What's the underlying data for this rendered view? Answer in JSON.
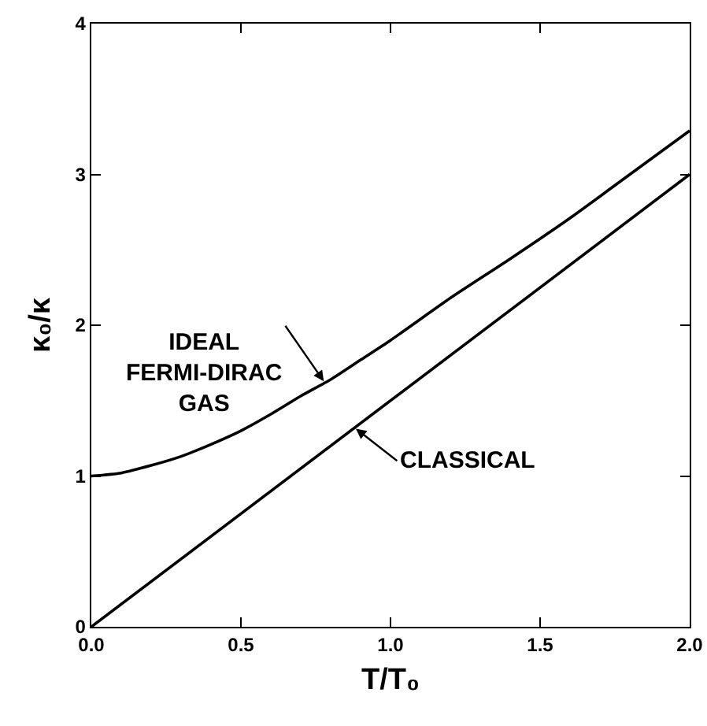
{
  "chart_data": {
    "type": "line",
    "xlabel": "T/T₀",
    "ylabel": "κ₀/κ",
    "xlim": [
      0,
      2
    ],
    "ylim": [
      0,
      4
    ],
    "xticks": [
      {
        "value": 0,
        "label": "0.0"
      },
      0.5,
      {
        "value": 1,
        "label": "1.0"
      },
      1.5,
      {
        "value": 2,
        "label": "2.0"
      }
    ],
    "yticks": [
      0,
      1,
      2,
      3,
      4
    ],
    "series": [
      {
        "color": "#000000",
        "x": [
          0,
          0.1,
          0.2,
          0.3,
          0.4,
          0.5,
          0.6,
          0.7,
          0.8,
          0.9,
          1.0,
          1.2,
          1.4,
          1.6,
          1.8,
          2.0
        ],
        "values": [
          1.0,
          1.02,
          1.07,
          1.13,
          1.21,
          1.3,
          1.41,
          1.53,
          1.64,
          1.77,
          1.9,
          2.18,
          2.44,
          2.71,
          3.0,
          3.29
        ]
      },
      {
        "color": "#000000",
        "x": [
          0,
          2.0
        ],
        "values": [
          0,
          3.0
        ]
      }
    ],
    "annotations": [
      {
        "text": "IDEAL\nFERMI-DIRAC\nGAS",
        "x": 0.78,
        "y": 1.62
      },
      {
        "text": "CLASSICAL",
        "x": 0.88,
        "y": 1.32
      }
    ]
  }
}
